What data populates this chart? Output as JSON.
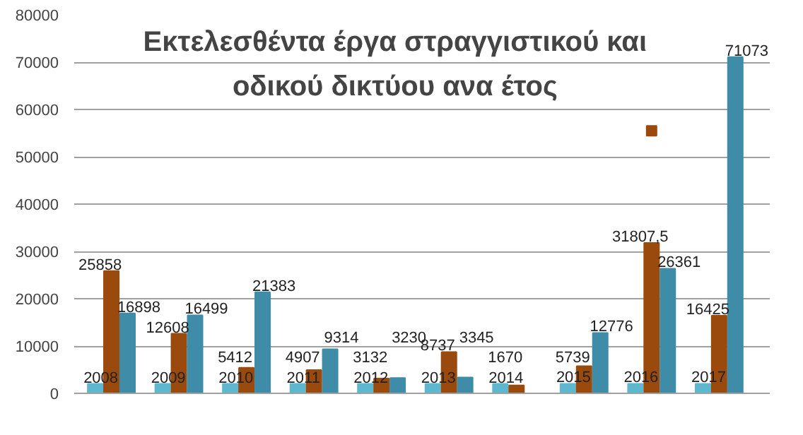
{
  "chart_data": {
    "type": "bar",
    "title": "Εκτελεσθέντα έργα στραγγιστικού και οδικού δικτύου ανα έτος",
    "categories": [
      null,
      null,
      null,
      null,
      null,
      null,
      null,
      null,
      null,
      null
    ],
    "series": [
      {
        "color": "#5db8cf",
        "values": [
          2008,
          2009,
          2010,
          2011,
          2012,
          2013,
          2014,
          2015,
          2016,
          2017
        ],
        "value_labels": [
          "2008",
          "2009",
          "2010",
          "2011",
          "2012",
          "2013",
          "2014",
          "2015",
          "2016",
          "2017"
        ]
      },
      {
        "color": "#9b4a0e",
        "values": [
          25858,
          12608,
          5412,
          4907,
          3132,
          8737,
          1670,
          5739,
          31807.5,
          16425
        ],
        "value_labels": [
          "25858",
          "12608",
          "5412",
          "4907",
          "3132",
          "8737",
          "1670",
          "5739",
          "31807,5",
          "16425"
        ]
      },
      {
        "color": "#3f8ca9",
        "values": [
          16898,
          16499,
          21383,
          9314,
          3230,
          3345,
          null,
          12776,
          26361,
          71073
        ],
        "value_labels": [
          "16898",
          "16499",
          "21383",
          "9314",
          "3230",
          "3345",
          null,
          "12776",
          "26361",
          "71073"
        ]
      },
      {
        "type": "scatter",
        "color": "#9b4a0e",
        "marker": "square",
        "values": [
          null,
          null,
          null,
          null,
          null,
          null,
          null,
          null,
          55500,
          null
        ]
      }
    ],
    "ylim": [
      0,
      80000
    ],
    "yticks": [
      0,
      10000,
      20000,
      30000,
      40000,
      50000,
      60000,
      70000,
      80000
    ],
    "grid": "y",
    "tick_labels": "y"
  }
}
